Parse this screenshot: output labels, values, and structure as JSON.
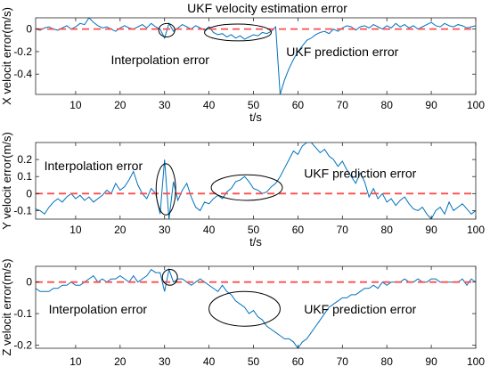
{
  "figure": {
    "title": "UKF velocity estimation error"
  },
  "chart_data": [
    {
      "type": "line",
      "ylabel": "X velocit error(m/s)",
      "xlabel": "t/s",
      "xlim": [
        1,
        100
      ],
      "ylim": [
        -0.58,
        0.1
      ],
      "xticks": [
        10,
        20,
        30,
        40,
        50,
        60,
        70,
        80,
        90,
        100
      ],
      "yticks": [
        0,
        -0.2,
        -0.4
      ],
      "ytick_labels": [
        "0",
        "-0.2",
        "-0.4"
      ],
      "grid": false,
      "series": [
        {
          "color": "#0072BD",
          "x": [
            1,
            2,
            3,
            4,
            5,
            6,
            7,
            8,
            9,
            10,
            11,
            12,
            13,
            14,
            15,
            16,
            17,
            18,
            19,
            20,
            21,
            22,
            23,
            24,
            25,
            26,
            27,
            28,
            29,
            30,
            31,
            32,
            33,
            34,
            35,
            36,
            37,
            38,
            39,
            40,
            41,
            42,
            43,
            44,
            45,
            46,
            47,
            48,
            49,
            50,
            51,
            52,
            53,
            54,
            55,
            56,
            57,
            58,
            59,
            60,
            61,
            62,
            63,
            64,
            65,
            66,
            67,
            68,
            69,
            70,
            71,
            72,
            73,
            74,
            75,
            76,
            77,
            78,
            79,
            80,
            81,
            82,
            83,
            84,
            85,
            86,
            87,
            88,
            89,
            90,
            91,
            92,
            93,
            94,
            95,
            96,
            97,
            98,
            99,
            100
          ],
          "values": [
            0.0,
            -0.01,
            0.01,
            0.02,
            0.0,
            -0.01,
            0.01,
            0.03,
            0.0,
            0.02,
            0.05,
            0.04,
            0.1,
            0.06,
            0.03,
            0.01,
            0.02,
            0.0,
            -0.02,
            0.01,
            0.03,
            0.01,
            0.0,
            0.02,
            0.04,
            0.01,
            0.05,
            0.02,
            0.0,
            -0.08,
            0.05,
            -0.02,
            0.01,
            0.04,
            0.02,
            0.0,
            0.03,
            0.01,
            -0.01,
            0.02,
            -0.03,
            -0.05,
            -0.04,
            -0.07,
            -0.05,
            -0.08,
            -0.06,
            -0.09,
            -0.07,
            -0.05,
            -0.06,
            -0.03,
            -0.04,
            -0.02,
            0.02,
            -0.58,
            -0.45,
            -0.35,
            -0.27,
            -0.2,
            -0.15,
            -0.1,
            -0.08,
            -0.05,
            -0.03,
            -0.02,
            -0.04,
            0.0,
            -0.02,
            0.01,
            0.03,
            0.02,
            -0.01,
            0.02,
            0.03,
            0.01,
            0.04,
            0.02,
            0.0,
            0.03,
            0.01,
            0.05,
            0.02,
            0.04,
            0.01,
            0.03,
            0.0,
            0.02,
            0.04,
            0.06,
            0.03,
            0.02,
            0.05,
            0.03,
            0.02,
            0.04,
            0.03,
            0.01,
            0.02,
            0.03
          ]
        },
        {
          "color": "#FF4D4D",
          "style": "dashed",
          "x": [
            1,
            100
          ],
          "values": [
            0,
            0
          ]
        }
      ],
      "annotations": [
        {
          "text": "Interpolation error",
          "x": 29,
          "y": -0.27
        },
        {
          "text": "UKF prediction error",
          "x": 70,
          "y": -0.2
        }
      ],
      "ellipses": [
        {
          "cx": 30.5,
          "cy": -0.01,
          "rx": 1.8,
          "ry": 0.06
        },
        {
          "cx": 46.5,
          "cy": -0.03,
          "rx": 7.5,
          "ry": 0.075
        }
      ]
    },
    {
      "type": "line",
      "ylabel": "Y velocit error(m/s)",
      "xlabel": "t/s",
      "xlim": [
        1,
        100
      ],
      "ylim": [
        -0.15,
        0.3
      ],
      "xticks": [
        10,
        20,
        30,
        40,
        50,
        60,
        70,
        80,
        90,
        100
      ],
      "yticks": [
        0.2,
        0.1,
        0,
        -0.1
      ],
      "ytick_labels": [
        "0.2",
        "0.1",
        "0",
        "-0.1"
      ],
      "grid": false,
      "series": [
        {
          "color": "#0072BD",
          "x": [
            1,
            2,
            3,
            4,
            5,
            6,
            7,
            8,
            9,
            10,
            11,
            12,
            13,
            14,
            15,
            16,
            17,
            18,
            19,
            20,
            21,
            22,
            23,
            24,
            25,
            26,
            27,
            28,
            29,
            30,
            31,
            32,
            33,
            34,
            35,
            36,
            37,
            38,
            39,
            40,
            41,
            42,
            43,
            44,
            45,
            46,
            47,
            48,
            49,
            50,
            51,
            52,
            53,
            54,
            55,
            56,
            57,
            58,
            59,
            60,
            61,
            62,
            63,
            64,
            65,
            66,
            67,
            68,
            69,
            70,
            71,
            72,
            73,
            74,
            75,
            76,
            77,
            78,
            79,
            80,
            81,
            82,
            83,
            84,
            85,
            86,
            87,
            88,
            89,
            90,
            91,
            92,
            93,
            94,
            95,
            96,
            97,
            98,
            99,
            100
          ],
          "values": [
            -0.09,
            -0.1,
            -0.12,
            -0.08,
            -0.05,
            -0.03,
            -0.05,
            -0.02,
            0.0,
            -0.03,
            -0.01,
            -0.04,
            -0.02,
            -0.05,
            -0.03,
            -0.01,
            0.02,
            0.0,
            0.06,
            0.02,
            0.04,
            0.08,
            0.13,
            0.05,
            0.0,
            -0.03,
            0.03,
            0.0,
            -0.12,
            0.2,
            -0.15,
            0.07,
            -0.04,
            0.02,
            0.06,
            -0.02,
            -0.08,
            -0.1,
            -0.05,
            -0.06,
            -0.03,
            -0.01,
            -0.03,
            0.01,
            0.03,
            0.07,
            0.08,
            0.1,
            0.07,
            0.03,
            0.02,
            0.0,
            0.01,
            0.04,
            0.06,
            0.1,
            0.15,
            0.2,
            0.25,
            0.23,
            0.28,
            0.3,
            0.3,
            0.27,
            0.24,
            0.26,
            0.22,
            0.2,
            0.16,
            0.19,
            0.14,
            0.1,
            0.06,
            0.12,
            0.07,
            -0.02,
            0.03,
            -0.03,
            0.0,
            -0.05,
            -0.03,
            -0.07,
            -0.04,
            -0.02,
            -0.06,
            -0.09,
            -0.1,
            -0.08,
            -0.12,
            -0.15,
            -0.1,
            -0.08,
            -0.12,
            -0.05,
            -0.1,
            -0.08,
            -0.06,
            -0.09,
            -0.12,
            -0.1
          ]
        },
        {
          "color": "#FF4D4D",
          "style": "dashed",
          "x": [
            1,
            100
          ],
          "values": [
            0,
            0
          ]
        }
      ],
      "annotations": [
        {
          "text": "Interpolation error",
          "x": 14,
          "y": 0.165
        },
        {
          "text": "UKF prediction error",
          "x": 74,
          "y": 0.12
        }
      ],
      "ellipses": [
        {
          "cx": 30.3,
          "cy": 0.025,
          "rx": 2.2,
          "ry": 0.15
        },
        {
          "cx": 48.5,
          "cy": 0.035,
          "rx": 8,
          "ry": 0.075
        }
      ]
    },
    {
      "type": "line",
      "ylabel": "Z velocit error(m/s)",
      "xlabel": "",
      "xlim": [
        1,
        100
      ],
      "ylim": [
        -0.21,
        0.05
      ],
      "xticks": [
        10,
        20,
        30,
        40,
        50,
        60,
        70,
        80,
        90,
        100
      ],
      "yticks": [
        0,
        -0.1,
        -0.2
      ],
      "ytick_labels": [
        "0",
        "-0.1",
        "-0.2"
      ],
      "grid": false,
      "series": [
        {
          "color": "#0072BD",
          "x": [
            1,
            2,
            3,
            4,
            5,
            6,
            7,
            8,
            9,
            10,
            11,
            12,
            13,
            14,
            15,
            16,
            17,
            18,
            19,
            20,
            21,
            22,
            23,
            24,
            25,
            26,
            27,
            28,
            29,
            30,
            31,
            32,
            33,
            34,
            35,
            36,
            37,
            38,
            39,
            40,
            41,
            42,
            43,
            44,
            45,
            46,
            47,
            48,
            49,
            50,
            51,
            52,
            53,
            54,
            55,
            56,
            57,
            58,
            59,
            60,
            61,
            62,
            63,
            64,
            65,
            66,
            67,
            68,
            69,
            70,
            71,
            72,
            73,
            74,
            75,
            76,
            77,
            78,
            79,
            80,
            81,
            82,
            83,
            84,
            85,
            86,
            87,
            88,
            89,
            90,
            91,
            92,
            93,
            94,
            95,
            96,
            97,
            98,
            99,
            100
          ],
          "values": [
            -0.02,
            -0.03,
            -0.03,
            -0.03,
            -0.02,
            -0.02,
            -0.01,
            -0.01,
            0.0,
            -0.01,
            -0.01,
            0.0,
            0.01,
            0.02,
            0.0,
            0.01,
            0.0,
            0.01,
            0.01,
            0.02,
            0.01,
            0.0,
            0.02,
            0.0,
            0.01,
            0.02,
            0.04,
            0.03,
            0.03,
            -0.03,
            0.04,
            0.0,
            0.01,
            0.01,
            0.0,
            -0.01,
            0.0,
            0.01,
            0.0,
            -0.01,
            -0.02,
            -0.03,
            -0.01,
            -0.03,
            -0.04,
            -0.06,
            -0.07,
            -0.08,
            -0.1,
            -0.09,
            -0.11,
            -0.12,
            -0.14,
            -0.15,
            -0.16,
            -0.17,
            -0.18,
            -0.18,
            -0.19,
            -0.21,
            -0.19,
            -0.18,
            -0.16,
            -0.14,
            -0.12,
            -0.1,
            -0.08,
            -0.07,
            -0.06,
            -0.05,
            -0.05,
            -0.04,
            -0.04,
            -0.03,
            -0.02,
            -0.02,
            -0.01,
            -0.02,
            0.0,
            -0.01,
            0.0,
            0.0,
            0.0,
            0.01,
            0.0,
            0.0,
            0.01,
            0.0,
            0.0,
            0.01,
            0.01,
            0.0,
            0.0,
            0.0,
            0.0,
            0.0,
            0.01,
            -0.01,
            0.01,
            0.0
          ]
        },
        {
          "color": "#FF4D4D",
          "style": "dashed",
          "x": [
            1,
            100
          ],
          "values": [
            0,
            0
          ]
        }
      ],
      "annotations": [
        {
          "text": "Interpolation error",
          "x": 15,
          "y": -0.085
        },
        {
          "text": "UKF prediction error",
          "x": 74,
          "y": -0.085
        }
      ],
      "ellipses": [
        {
          "cx": 31.2,
          "cy": 0.015,
          "rx": 1.7,
          "ry": 0.025
        },
        {
          "cx": 48,
          "cy": -0.085,
          "rx": 8,
          "ry": 0.055
        }
      ]
    }
  ]
}
